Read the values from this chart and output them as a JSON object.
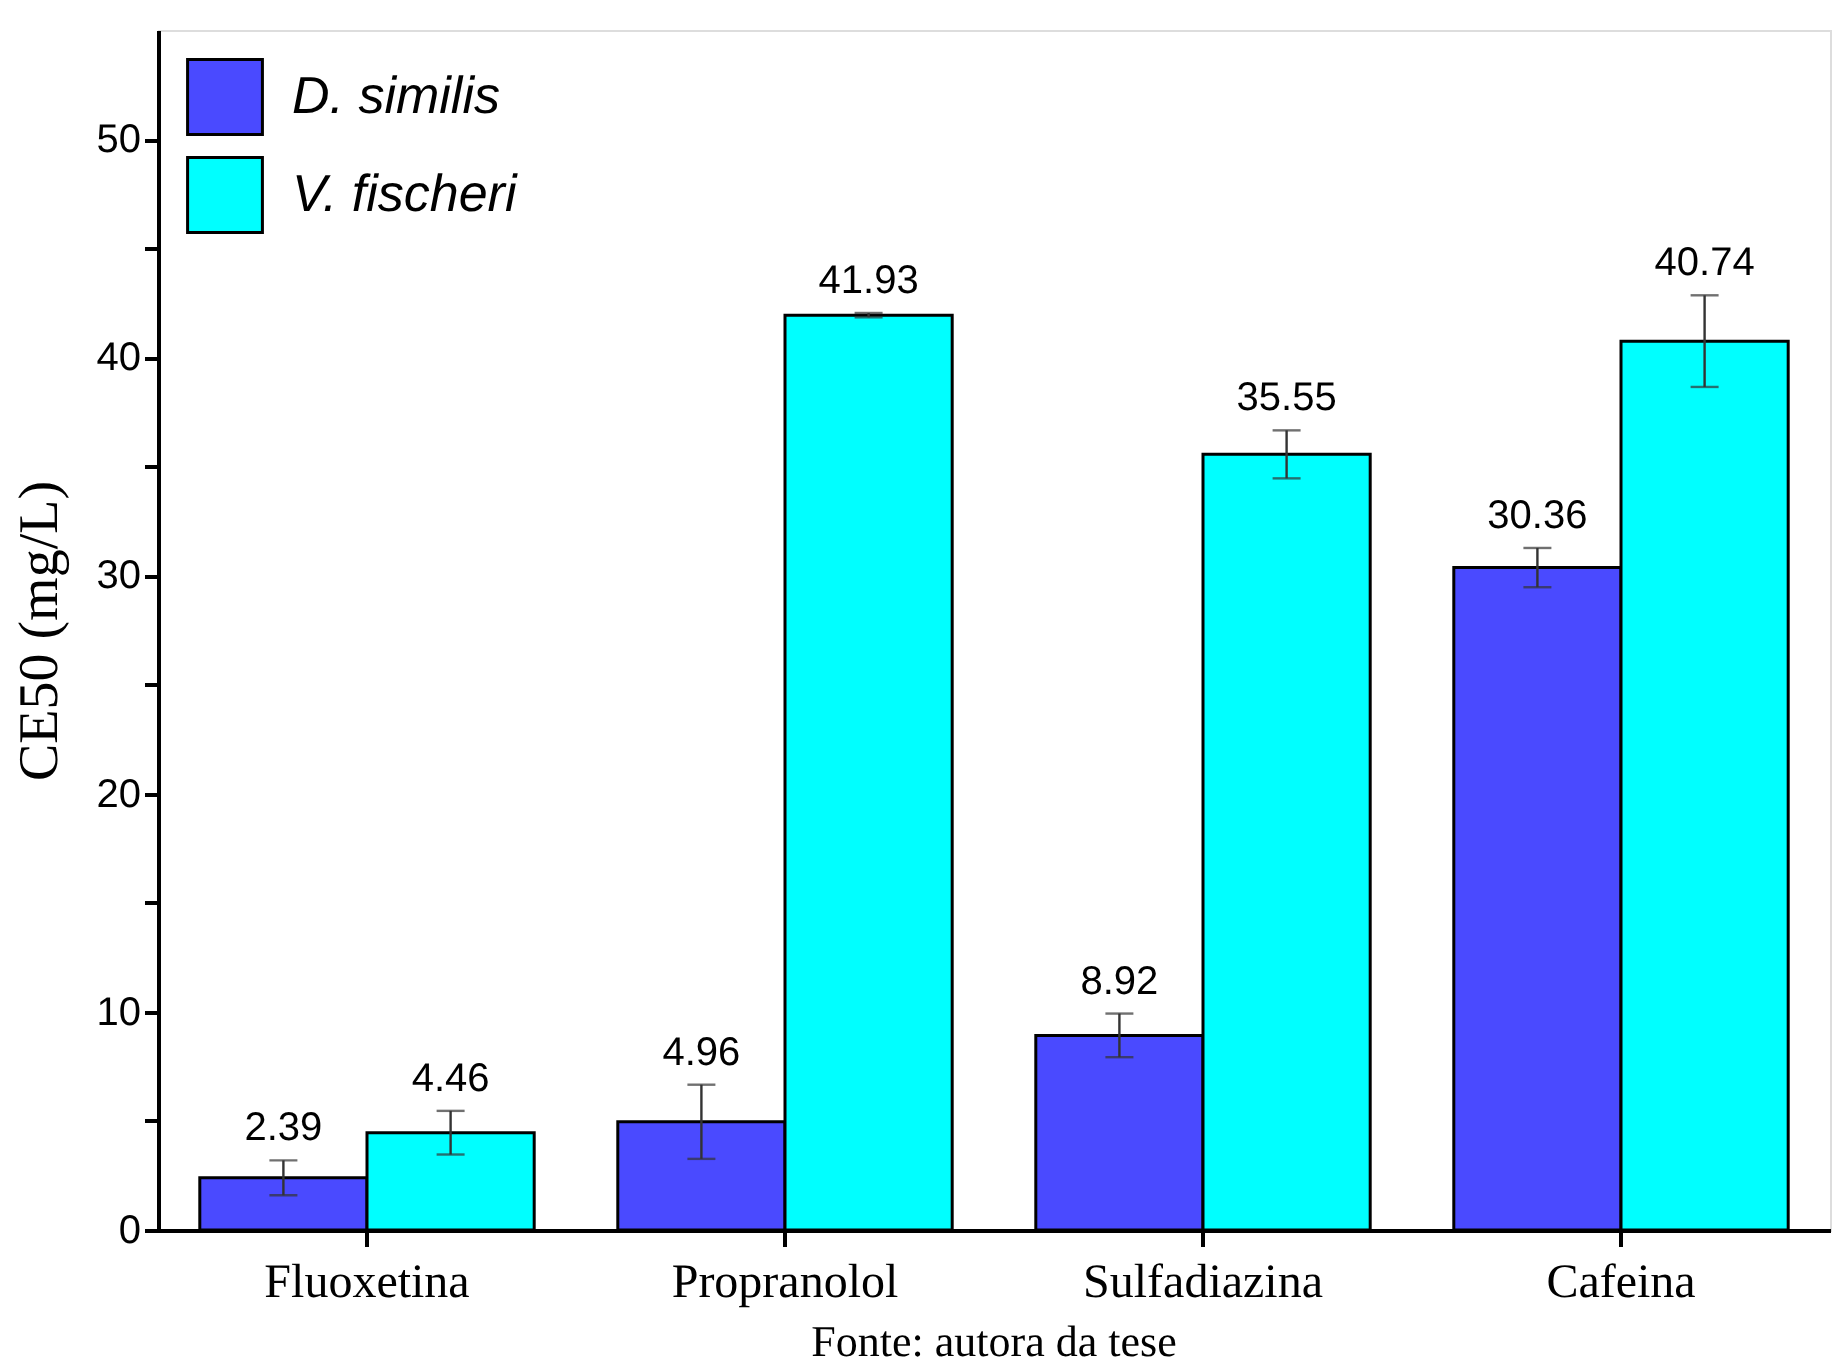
{
  "chart_data": {
    "type": "bar",
    "ylabel": "CE50 (mg/L)",
    "categories": [
      "Fluoxetina",
      "Propranolol",
      "Sulfadiazina",
      "Cafeina"
    ],
    "series": [
      {
        "name": "D. similis",
        "color": "#4a4aff",
        "values": [
          2.39,
          4.96,
          8.92,
          30.36
        ],
        "errors": [
          0.8,
          1.7,
          1.0,
          0.9
        ]
      },
      {
        "name": "V. fischeri",
        "color": "#00ffff",
        "values": [
          4.46,
          41.93,
          35.55,
          40.74
        ],
        "errors": [
          1.0,
          0.1,
          1.1,
          2.1
        ]
      }
    ],
    "ylim": [
      0,
      55
    ],
    "yticks": [
      0,
      {
        "value": 5,
        "label": null
      },
      10,
      {
        "value": 15,
        "label": null
      },
      20,
      {
        "value": 25,
        "label": null
      },
      30,
      {
        "value": 35,
        "label": null
      },
      40,
      {
        "value": 45,
        "label": null
      },
      50
    ],
    "data_labels": true,
    "legend": "top left",
    "grid": false,
    "annotations": [
      "Fonte: autora da tese"
    ]
  }
}
